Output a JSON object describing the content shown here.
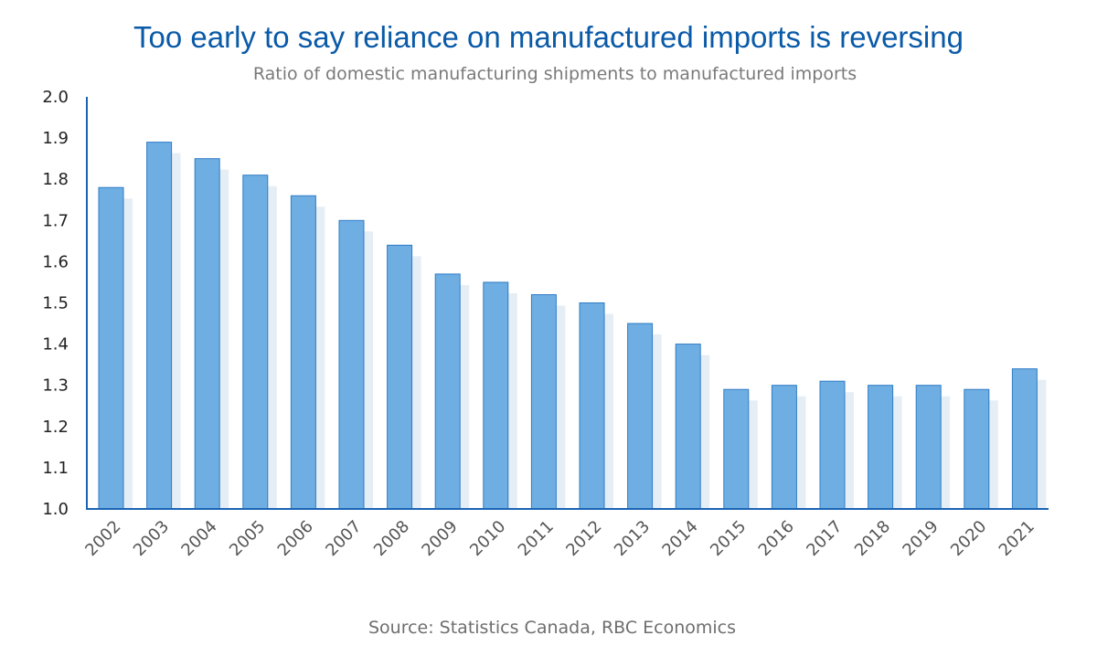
{
  "chart_data": {
    "type": "bar",
    "title": "Too early to say reliance on manufactured imports is reversing",
    "subtitle": "Ratio of domestic manufacturing shipments to manufactured imports",
    "source": "Source: Statistics Canada, RBC Economics",
    "categories": [
      "2002",
      "2003",
      "2004",
      "2005",
      "2006",
      "2007",
      "2008",
      "2009",
      "2010",
      "2011",
      "2012",
      "2013",
      "2014",
      "2015",
      "2016",
      "2017",
      "2018",
      "2019",
      "2020",
      "2021"
    ],
    "series": [
      {
        "values": [
          1.78,
          1.89,
          1.85,
          1.81,
          1.76,
          1.7,
          1.64,
          1.57,
          1.55,
          1.52,
          1.5,
          1.45,
          1.4,
          1.29,
          1.3,
          1.31,
          1.3,
          1.3,
          1.29,
          1.34
        ]
      }
    ],
    "ylim": [
      1.0,
      2.0
    ],
    "yticks": [
      "1.0",
      "1.1",
      "1.2",
      "1.3",
      "1.4",
      "1.5",
      "1.6",
      "1.7",
      "1.8",
      "1.9",
      "2.0"
    ],
    "xlabel": "",
    "ylabel": "",
    "grid": false,
    "legend": "none",
    "colors": {
      "bar": "#6eaee2",
      "bar_stroke": "#2f7cc6",
      "bar_shadow": "#e6eef5",
      "axis": "#1b63b5",
      "title": "#0a5aa8"
    }
  }
}
